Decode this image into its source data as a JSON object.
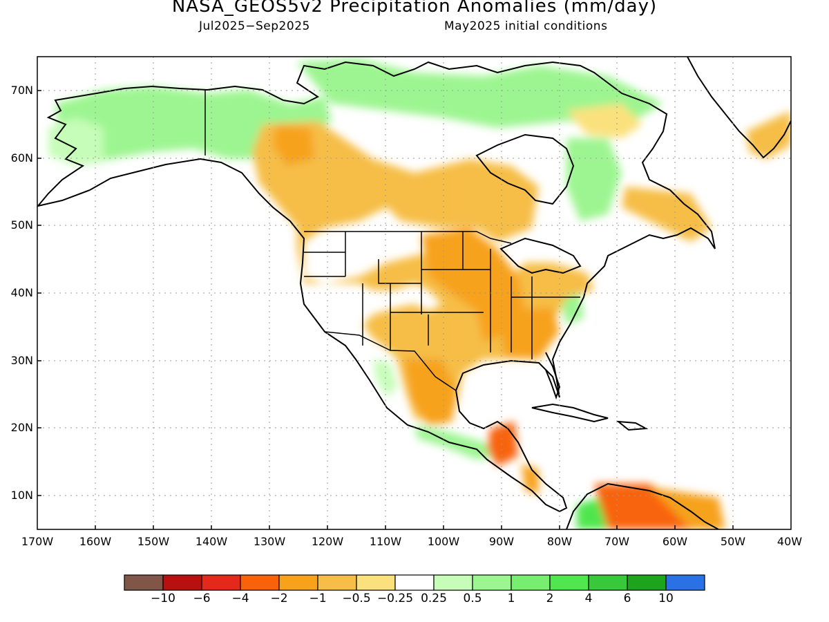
{
  "title": "NASA_GEOS5v2 Precipitation Anomalies (mm/day)",
  "subtitle_left": "Jul2025−Sep2025",
  "subtitle_right": "May2025 initial conditions",
  "map": {
    "projection": "lat-lon",
    "lon_range": [
      -170,
      -40
    ],
    "lat_range": [
      5,
      75
    ],
    "lat_ticks": [
      "70N",
      "60N",
      "50N",
      "40N",
      "30N",
      "20N",
      "10N"
    ],
    "lon_ticks": [
      "170W",
      "160W",
      "150W",
      "140W",
      "130W",
      "120W",
      "110W",
      "100W",
      "90W",
      "80W",
      "70W",
      "60W",
      "50W",
      "40W"
    ],
    "grid": "dotted"
  },
  "colorbar": {
    "colors": [
      "#7f5647",
      "#b80f0f",
      "#e3281c",
      "#f8630a",
      "#f7a21a",
      "#f6be46",
      "#fbe17d",
      "#ffffff",
      "#c6fdb8",
      "#9cf590",
      "#78ee71",
      "#4fe64e",
      "#37c93a",
      "#1da41d",
      "#2a71e6"
    ],
    "labels": [
      "−10",
      "−6",
      "−4",
      "−2",
      "−1",
      "−0.5",
      "−0.25",
      "0.25",
      "0.5",
      "1",
      "2",
      "4",
      "6",
      "10"
    ]
  }
}
